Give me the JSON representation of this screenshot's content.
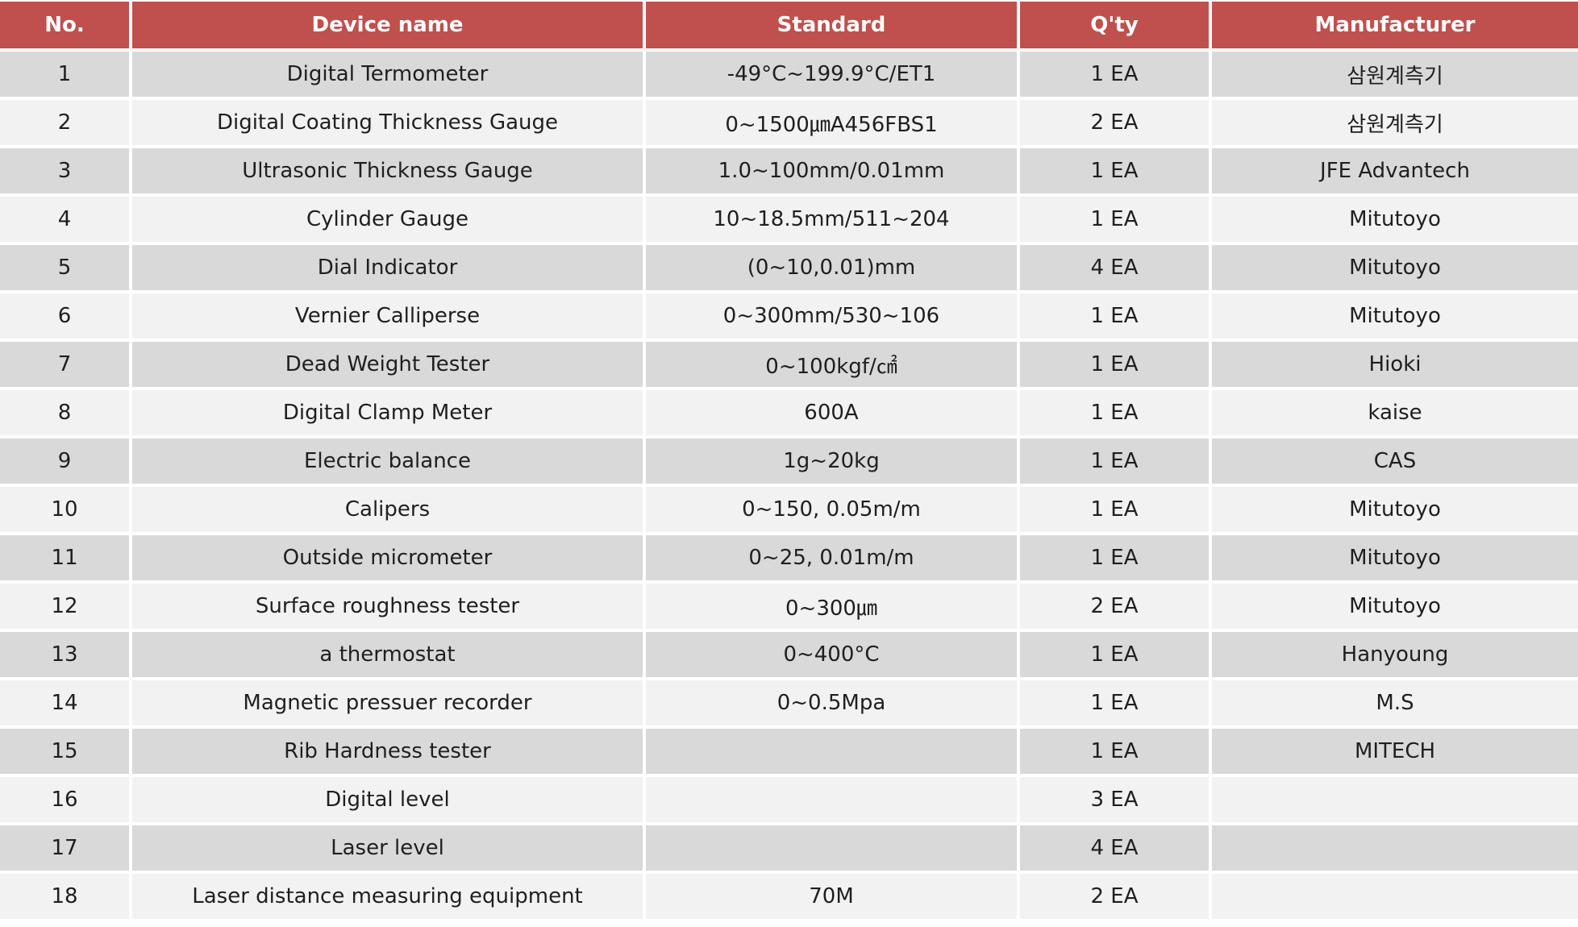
{
  "columns": [
    "No.",
    "Device name",
    "Standard",
    "Q'ty",
    "Manufacturer"
  ],
  "rows": [
    {
      "no": "1",
      "name": "Digital Termometer",
      "standard": "-49°C~199.9°C/ET1",
      "qty": "1 EA",
      "maker": "삼원계측기"
    },
    {
      "no": "2",
      "name": "Digital Coating Thickness Gauge",
      "standard": "0~1500㎛A456FBS1",
      "qty": "2 EA",
      "maker": "삼원계측기"
    },
    {
      "no": "3",
      "name": "Ultrasonic Thickness Gauge",
      "standard": "1.0~100mm/0.01mm",
      "qty": "1 EA",
      "maker": "JFE Advantech"
    },
    {
      "no": "4",
      "name": "Cylinder Gauge",
      "standard": "10~18.5mm/511~204",
      "qty": "1 EA",
      "maker": "Mitutoyo"
    },
    {
      "no": "5",
      "name": "Dial Indicator",
      "standard": "(0~10,0.01)mm",
      "qty": "4 EA",
      "maker": "Mitutoyo"
    },
    {
      "no": "6",
      "name": "Vernier Calliperse",
      "standard": "0~300mm/530~106",
      "qty": "1 EA",
      "maker": "Mitutoyo"
    },
    {
      "no": "7",
      "name": "Dead Weight Tester",
      "standard": "0~100kgf/㎠",
      "qty": "1 EA",
      "maker": "Hioki"
    },
    {
      "no": "8",
      "name": "Digital Clamp Meter",
      "standard": "600A",
      "qty": "1 EA",
      "maker": "kaise"
    },
    {
      "no": "9",
      "name": "Electric balance",
      "standard": "1g~20kg",
      "qty": "1 EA",
      "maker": "CAS"
    },
    {
      "no": "10",
      "name": "Calipers",
      "standard": "0~150, 0.05m/m",
      "qty": "1 EA",
      "maker": "Mitutoyo"
    },
    {
      "no": "11",
      "name": "Outside micrometer",
      "standard": "0~25, 0.01m/m",
      "qty": "1 EA",
      "maker": "Mitutoyo"
    },
    {
      "no": "12",
      "name": "Surface roughness tester",
      "standard": "0~300㎛",
      "qty": "2 EA",
      "maker": "Mitutoyo"
    },
    {
      "no": "13",
      "name": "a thermostat",
      "standard": "0~400°C",
      "qty": "1 EA",
      "maker": "Hanyoung"
    },
    {
      "no": "14",
      "name": "Magnetic pressuer recorder",
      "standard": "0~0.5Mpa",
      "qty": "1 EA",
      "maker": "M.S"
    },
    {
      "no": "15",
      "name": "Rib Hardness tester",
      "standard": "",
      "qty": "1 EA",
      "maker": "MITECH"
    },
    {
      "no": "16",
      "name": "Digital level",
      "standard": "",
      "qty": "3 EA",
      "maker": ""
    },
    {
      "no": "17",
      "name": "Laser level",
      "standard": "",
      "qty": "4 EA",
      "maker": ""
    },
    {
      "no": "18",
      "name": "Laser distance measuring equipment",
      "standard": "70M",
      "qty": "2 EA",
      "maker": ""
    }
  ],
  "colors": {
    "header_bg": "#c0504d",
    "header_text": "#ffffff",
    "row_odd_bg": "#d9d9d9",
    "row_even_bg": "#f2f2f2"
  }
}
